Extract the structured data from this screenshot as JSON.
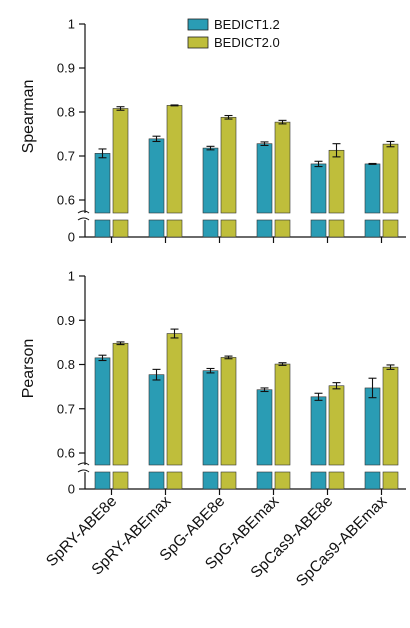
{
  "chart_data": [
    {
      "type": "bar",
      "ylabel": "Spearman",
      "y_ticks": [
        "0",
        "0.6",
        "0.7",
        "0.8",
        "0.9",
        "1"
      ],
      "ylim": [
        0.6,
        1.0
      ],
      "axis_break": true,
      "categories": [
        "SpRY-ABE8e",
        "SpRY-ABEmax",
        "SpG-ABE8e",
        "SpG-ABEmax",
        "SpCas9-ABE8e",
        "SpCas9-ABEmax"
      ],
      "series": [
        {
          "name": "BEDICT1.2",
          "values": [
            0.706,
            0.739,
            0.718,
            0.728,
            0.682,
            0.682
          ],
          "errors": [
            0.01,
            0.006,
            0.004,
            0.004,
            0.006,
            0.001
          ]
        },
        {
          "name": "BEDICT2.0",
          "values": [
            0.808,
            0.815,
            0.788,
            0.777,
            0.713,
            0.727
          ],
          "errors": [
            0.004,
            0.001,
            0.004,
            0.004,
            0.015,
            0.006
          ]
        }
      ],
      "legend": {
        "placement": "top-center"
      }
    },
    {
      "type": "bar",
      "ylabel": "Pearson",
      "y_ticks": [
        "0",
        "0.6",
        "0.7",
        "0.8",
        "0.9",
        "1"
      ],
      "ylim": [
        0.6,
        1.0
      ],
      "axis_break": true,
      "categories": [
        "SpRY-ABE8e",
        "SpRY-ABEmax",
        "SpG-ABE8e",
        "SpG-ABEmax",
        "SpCas9-ABE8e",
        "SpCas9-ABEmax"
      ],
      "series": [
        {
          "name": "BEDICT1.2",
          "values": [
            0.815,
            0.777,
            0.786,
            0.743,
            0.727,
            0.747
          ],
          "errors": [
            0.006,
            0.012,
            0.005,
            0.004,
            0.008,
            0.022
          ]
        },
        {
          "name": "BEDICT2.0",
          "values": [
            0.848,
            0.87,
            0.816,
            0.801,
            0.752,
            0.794
          ],
          "errors": [
            0.003,
            0.01,
            0.003,
            0.003,
            0.007,
            0.005
          ]
        }
      ]
    }
  ],
  "colors": {
    "BEDICT1.2": "#2a9cb4",
    "BEDICT2.0": "#bfbe3b"
  }
}
